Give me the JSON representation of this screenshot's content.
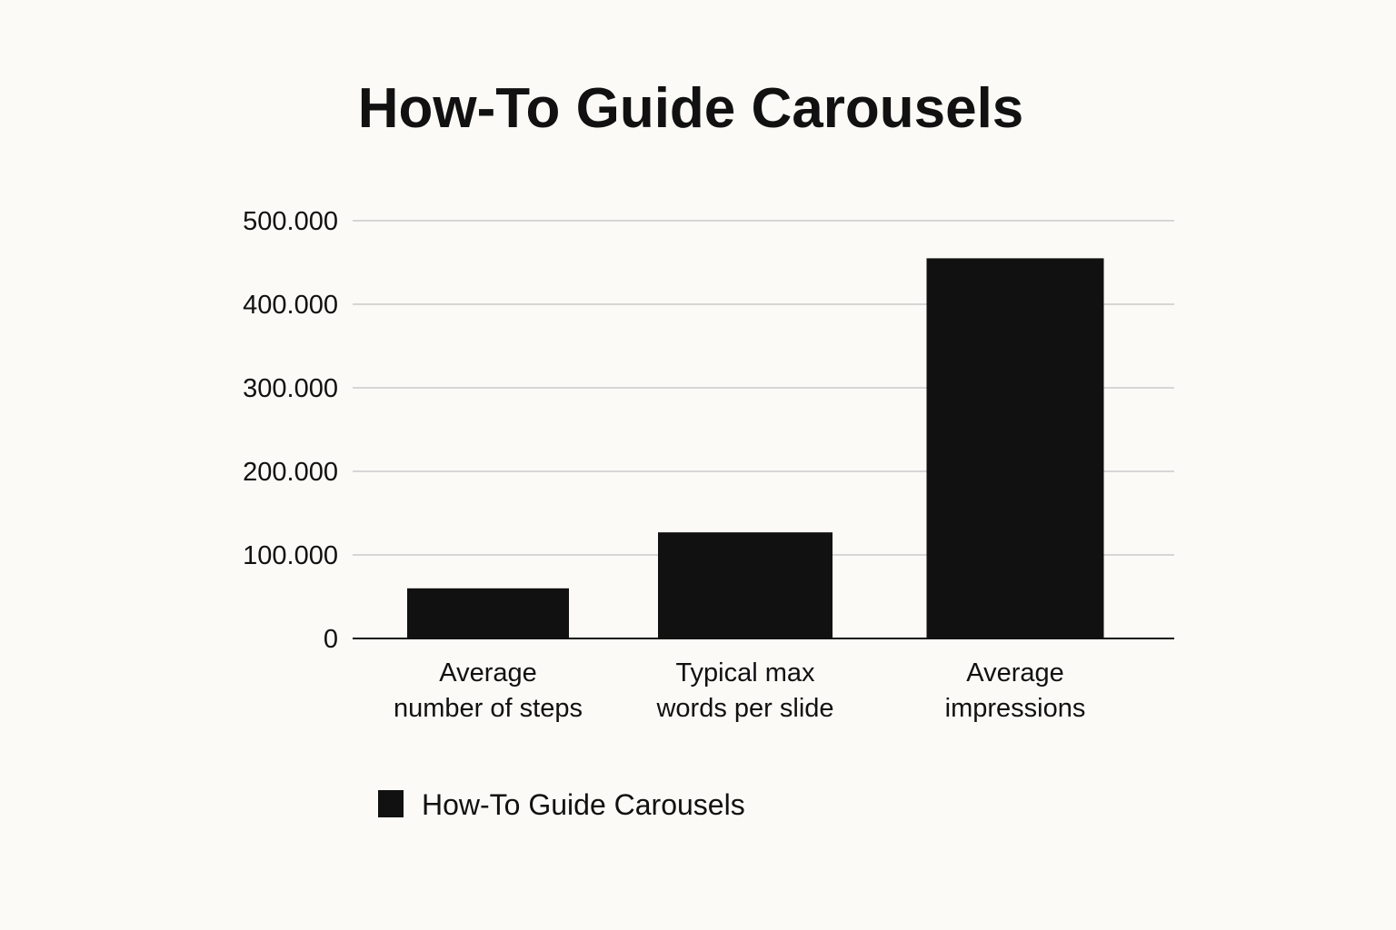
{
  "chart_data": {
    "type": "bar",
    "title": "How-To Guide Carousels",
    "categories": [
      [
        "Average",
        "number of steps"
      ],
      [
        "Typical max",
        "words per slide"
      ],
      [
        "Average",
        "impressions"
      ]
    ],
    "series": [
      {
        "name": "How-To Guide Carousels",
        "values": [
          60000,
          127000,
          455000
        ],
        "color": "#111111"
      }
    ],
    "y_ticks": [
      0,
      100000,
      200000,
      300000,
      400000,
      500000
    ],
    "y_tick_labels": [
      "0",
      "100.000",
      "200.000",
      "300.000",
      "400.000",
      "500.000"
    ],
    "ylim": [
      0,
      500000
    ],
    "xlabel": "",
    "ylabel": "",
    "grid": true,
    "legend_position": "bottom-left"
  }
}
